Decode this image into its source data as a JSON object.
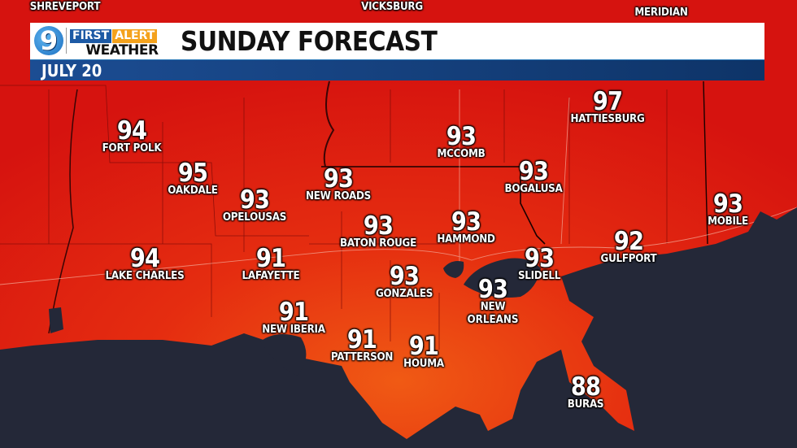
{
  "header": {
    "station_logo": "9",
    "brand_first_alert": [
      "FIRST",
      "ALERT"
    ],
    "brand_weather": "WEATHER",
    "title": "SUNDAY FORECAST",
    "date": "JULY 20"
  },
  "colors": {
    "land_heat": "#d8170f",
    "water": "#242838",
    "title_bar": "#ffffff",
    "date_bar": "#173f7e",
    "brand_blue": "#1d5aa5",
    "brand_orange": "#f4a21c"
  },
  "partial_labels": [
    "SHREVEPORT",
    "VICKSBURG",
    "MERIDIAN"
  ],
  "cities": [
    {
      "name": "FORT POLK",
      "temp": "94"
    },
    {
      "name": "OAKDALE",
      "temp": "95"
    },
    {
      "name": "OPELOUSAS",
      "temp": "93"
    },
    {
      "name": "NEW ROADS",
      "temp": "93"
    },
    {
      "name": "MCCOMB",
      "temp": "93"
    },
    {
      "name": "HATTIESBURG",
      "temp": "97"
    },
    {
      "name": "BOGALUSA",
      "temp": "93"
    },
    {
      "name": "MOBILE",
      "temp": "93"
    },
    {
      "name": "BATON ROUGE",
      "temp": "93"
    },
    {
      "name": "HAMMOND",
      "temp": "93"
    },
    {
      "name": "GULFPORT",
      "temp": "92"
    },
    {
      "name": "LAKE CHARLES",
      "temp": "94"
    },
    {
      "name": "LAFAYETTE",
      "temp": "91"
    },
    {
      "name": "GONZALES",
      "temp": "93"
    },
    {
      "name": "SLIDELL",
      "temp": "93"
    },
    {
      "name": "NEW",
      "name_line2": "ORLEANS",
      "temp": "93"
    },
    {
      "name": "NEW IBERIA",
      "temp": "91"
    },
    {
      "name": "PATTERSON",
      "temp": "91"
    },
    {
      "name": "HOUMA",
      "temp": "91"
    },
    {
      "name": "BURAS",
      "temp": "88"
    }
  ]
}
